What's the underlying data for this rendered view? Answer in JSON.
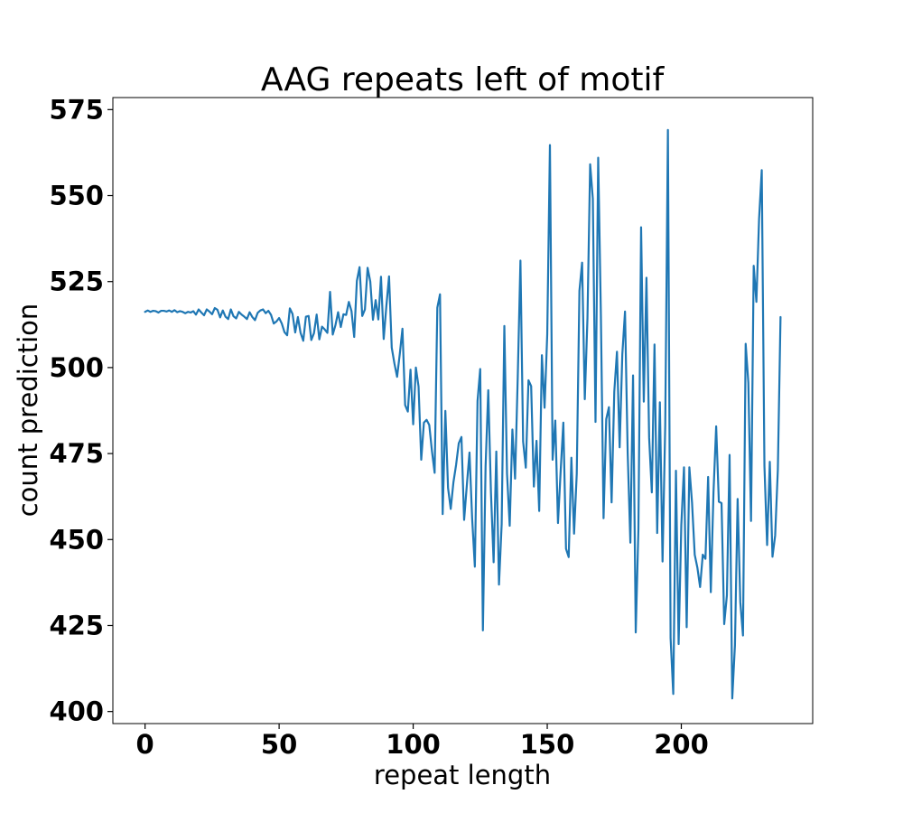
{
  "chart_data": {
    "type": "line",
    "title": "AAG repeats left of motif",
    "xlabel": "repeat length",
    "ylabel": "count prediction",
    "xlim": [
      -12,
      249
    ],
    "ylim": [
      396.5,
      578.5
    ],
    "xticks": [
      0,
      50,
      100,
      150,
      200
    ],
    "yticks": [
      400,
      425,
      450,
      475,
      500,
      525,
      550,
      575
    ],
    "grid": false,
    "series": [
      {
        "color": "#1f77b4",
        "x": [
          0,
          1,
          2,
          3,
          4,
          5,
          6,
          7,
          8,
          9,
          10,
          11,
          12,
          13,
          14,
          15,
          16,
          17,
          18,
          19,
          20,
          21,
          22,
          23,
          24,
          25,
          26,
          27,
          28,
          29,
          30,
          31,
          32,
          33,
          34,
          35,
          36,
          37,
          38,
          39,
          40,
          41,
          42,
          43,
          44,
          45,
          46,
          47,
          48,
          49,
          50,
          51,
          52,
          53,
          54,
          55,
          56,
          57,
          58,
          59,
          60,
          61,
          62,
          63,
          64,
          65,
          66,
          67,
          68,
          69,
          70,
          71,
          72,
          73,
          74,
          75,
          76,
          77,
          78,
          79,
          80,
          81,
          82,
          83,
          84,
          85,
          86,
          87,
          88,
          89,
          90,
          91,
          92,
          93,
          94,
          95,
          96,
          97,
          98,
          99,
          100,
          101,
          102,
          103,
          104,
          105,
          106,
          107,
          108,
          109,
          110,
          111,
          112,
          113,
          114,
          115,
          116,
          117,
          118,
          119,
          120,
          121,
          122,
          123,
          124,
          125,
          126,
          127,
          128,
          129,
          130,
          131,
          132,
          133,
          134,
          135,
          136,
          137,
          138,
          139,
          140,
          141,
          142,
          143,
          144,
          145,
          146,
          147,
          148,
          149,
          150,
          151,
          152,
          153,
          154,
          155,
          156,
          157,
          158,
          159,
          160,
          161,
          162,
          163,
          164,
          165,
          166,
          167,
          168,
          169,
          170,
          171,
          172,
          173,
          174,
          175,
          176,
          177,
          178,
          179,
          180,
          181,
          182,
          183,
          184,
          185,
          186,
          187,
          188,
          189,
          190,
          191,
          192,
          193,
          194,
          195,
          196,
          197,
          198,
          199,
          200,
          201,
          202,
          203,
          204,
          205,
          206,
          207,
          208,
          209,
          210,
          211,
          212,
          213,
          214,
          215,
          216,
          217,
          218,
          219,
          220,
          221,
          222,
          223,
          224,
          225,
          226,
          227,
          228,
          229,
          230,
          231,
          232,
          233,
          234,
          235,
          236,
          237
        ],
        "values": [
          516.2,
          516.6,
          516.2,
          516.5,
          516.4,
          516.0,
          516.5,
          516.5,
          516.3,
          516.6,
          516.2,
          516.7,
          516.1,
          516.4,
          516.2,
          515.8,
          516.2,
          516.0,
          516.4,
          515.4,
          516.9,
          516.0,
          515.2,
          516.9,
          516.3,
          515.5,
          517.3,
          516.8,
          514.6,
          516.6,
          514.8,
          514.1,
          516.9,
          514.9,
          514.3,
          516.2,
          515.4,
          514.8,
          514.1,
          516.1,
          514.7,
          513.8,
          515.9,
          516.6,
          516.9,
          515.8,
          516.5,
          515.3,
          512.8,
          513.4,
          514.4,
          512.8,
          510.3,
          509.4,
          517.2,
          515.6,
          510.2,
          514.7,
          510.1,
          507.8,
          514.8,
          515.0,
          508.0,
          510.0,
          515.4,
          508.2,
          511.9,
          511.1,
          510.1,
          522.0,
          509.6,
          512.3,
          516.1,
          511.8,
          515.5,
          515.3,
          519.1,
          516.4,
          508.9,
          525.2,
          529.2,
          515.0,
          516.9,
          529.0,
          525.0,
          513.9,
          519.6,
          514.0,
          526.4,
          508.3,
          517.9,
          526.5,
          505.8,
          501.2,
          497.3,
          503.9,
          511.3,
          489.1,
          487.2,
          499.4,
          483.5,
          500.0,
          494.5,
          473.2,
          484.0,
          484.8,
          483.3,
          475.7,
          469.4,
          517.4,
          521.3,
          457.4,
          487.4,
          465.0,
          458.9,
          466.6,
          471.7,
          478.0,
          479.8,
          455.7,
          465.7,
          475.3,
          456.0,
          442.1,
          490.3,
          499.6,
          423.6,
          471.3,
          493.4,
          463.8,
          443.4,
          475.6,
          436.9,
          454.5,
          512.1,
          469.1,
          454.0,
          482.0,
          467.7,
          497.3,
          531.1,
          478.5,
          470.9,
          496.3,
          494.6,
          465.4,
          478.7,
          458.3,
          503.6,
          488.3,
          509.7,
          564.7,
          473.2,
          484.6,
          454.8,
          469.9,
          484.0,
          447.3,
          444.9,
          473.8,
          451.7,
          469.1,
          522.3,
          530.5,
          490.8,
          514.4,
          559.1,
          549.1,
          484.2,
          561.0,
          515.5,
          456.2,
          485.0,
          488.5,
          460.8,
          493.0,
          504.6,
          476.8,
          503.9,
          516.3,
          475.2,
          449.1,
          497.7,
          423.0,
          453.0,
          540.8,
          490.1,
          526.1,
          479.6,
          463.7,
          506.7,
          451.9,
          489.9,
          443.6,
          483.2,
          569.1,
          421.4,
          405.1,
          470.0,
          419.6,
          454.2,
          471.0,
          424.5,
          471.0,
          460.7,
          445.6,
          441.8,
          436.2,
          445.6,
          444.4,
          468.2,
          434.7,
          463.7,
          482.9,
          461.0,
          460.6,
          425.4,
          433.8,
          474.6,
          403.8,
          419.3,
          461.8,
          431.8,
          422.1,
          506.9,
          495.6,
          455.4,
          529.6,
          519.1,
          543.2,
          557.4,
          471.4,
          448.4,
          472.6,
          445.0,
          451.2,
          470.3,
          514.7
        ]
      }
    ]
  }
}
